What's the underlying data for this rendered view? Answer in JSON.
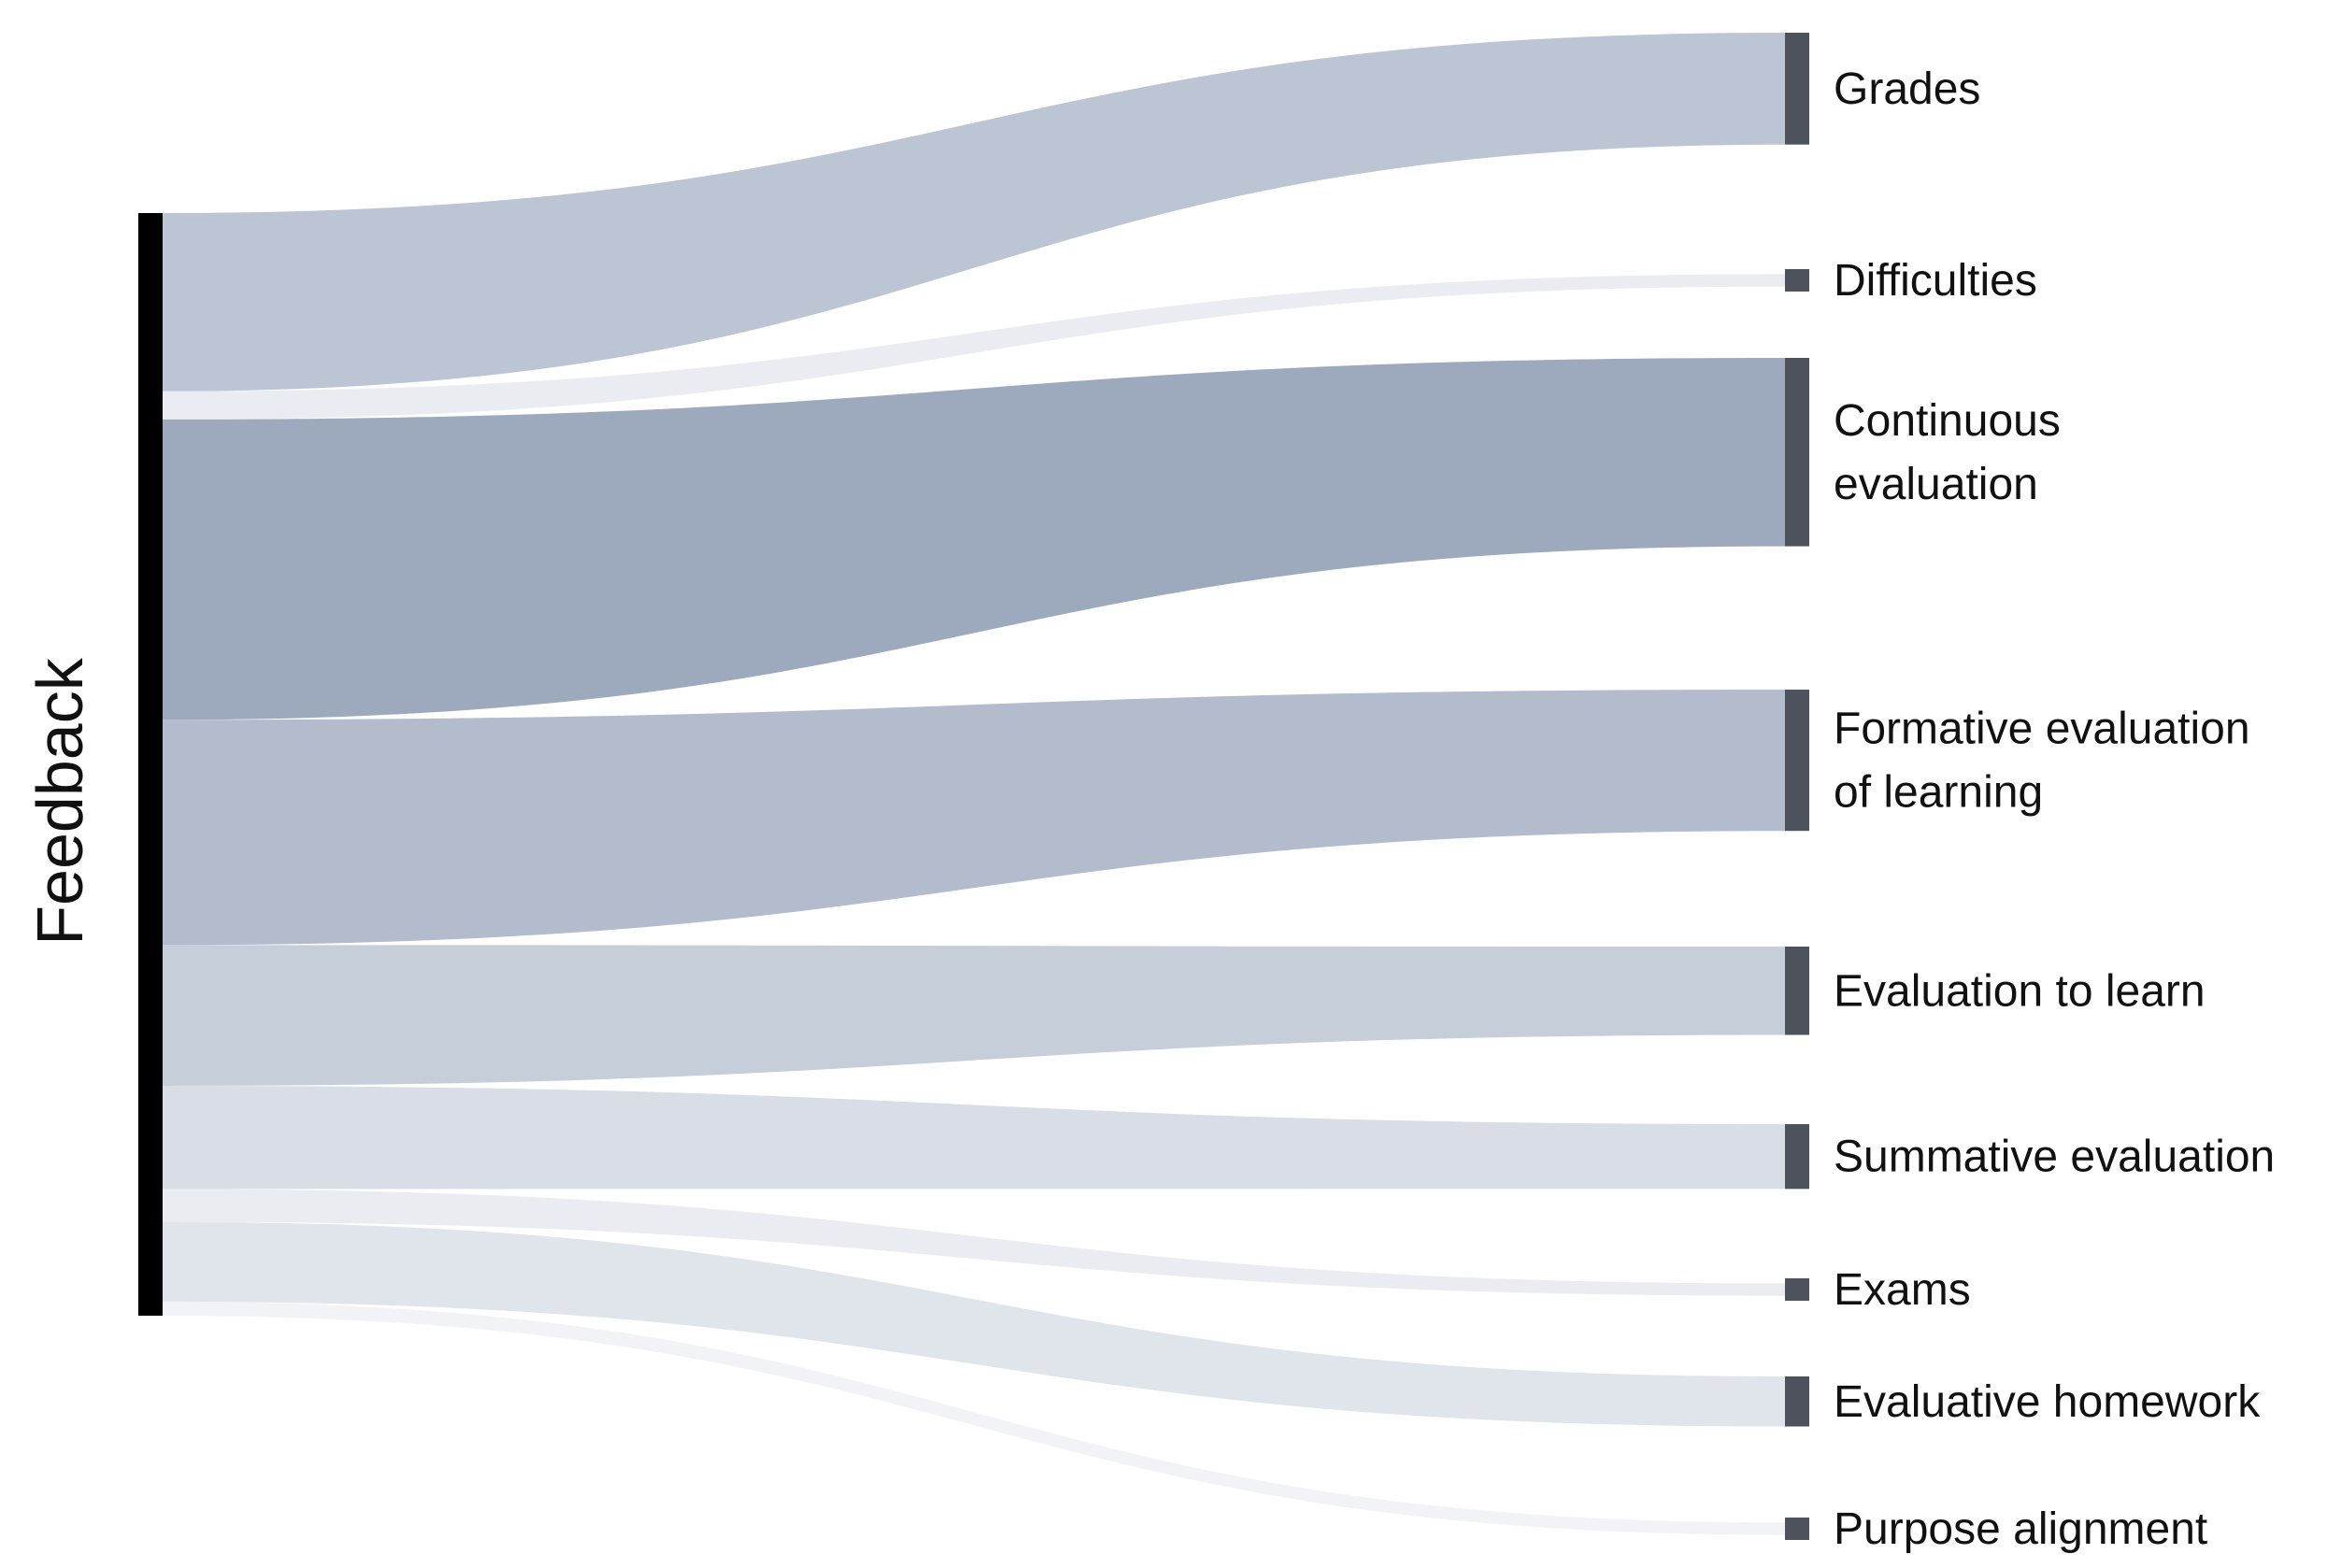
{
  "chart_data": {
    "type": "sankey",
    "source": {
      "label": "Feedback",
      "color": "#000000"
    },
    "targets": [
      {
        "id": "grades",
        "label_lines": [
          "Grades"
        ],
        "value": 19,
        "fill": "#bcc5d3",
        "opacity": 1.0
      },
      {
        "id": "difficulties",
        "label_lines": [
          "Difficulties"
        ],
        "value": 3,
        "fill": "#e9ecf1",
        "opacity": 1.0
      },
      {
        "id": "continuous",
        "label_lines": [
          "Continuous",
          "evaluation"
        ],
        "value": 32,
        "fill": "#9daabe",
        "opacity": 1.0
      },
      {
        "id": "formative",
        "label_lines": [
          "Formative evaluation",
          "of learning"
        ],
        "value": 24,
        "fill": "#b2bccc",
        "opacity": 1.0
      },
      {
        "id": "eval-learn",
        "label_lines": [
          "Evaluation to learn"
        ],
        "value": 15,
        "fill": "#c6ceda",
        "opacity": 1.0
      },
      {
        "id": "summative",
        "label_lines": [
          "Summative evaluation"
        ],
        "value": 11,
        "fill": "#d8dde6",
        "opacity": 1.0
      },
      {
        "id": "exams",
        "label_lines": [
          "Exams"
        ],
        "value": 3.5,
        "fill": "#e9ecf1",
        "opacity": 1.0
      },
      {
        "id": "homework",
        "label_lines": [
          "Evaluative homework"
        ],
        "value": 8.5,
        "fill": "#e0e4eb",
        "opacity": 1.0
      },
      {
        "id": "purpose",
        "label_lines": [
          "Purpose alignment"
        ],
        "value": 1.5,
        "fill": "#f1f3f6",
        "opacity": 1.0
      }
    ],
    "target_node_color": "#4d525c"
  }
}
